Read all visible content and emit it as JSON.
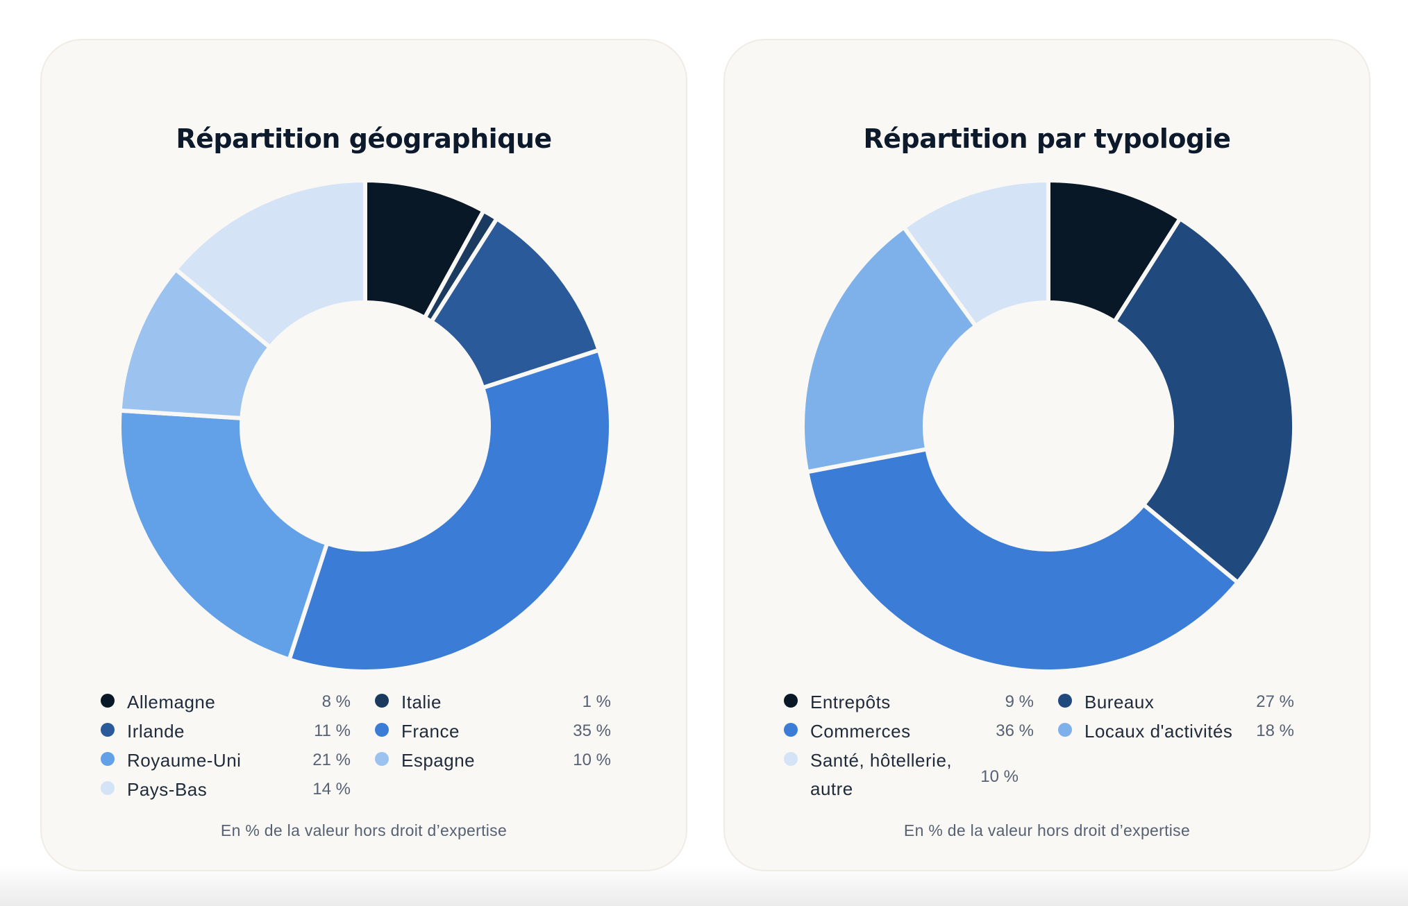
{
  "chart_data": [
    {
      "type": "pie",
      "title": "Répartition géographique",
      "unit": "%",
      "note": "En % de la valeur hors droit d’expertise",
      "series": [
        {
          "name": "Allemagne",
          "value": 8,
          "display": "8 %",
          "color": "#091826"
        },
        {
          "name": "Italie",
          "value": 1,
          "display": "1 %",
          "color": "#1b3a60"
        },
        {
          "name": "Irlande",
          "value": 11,
          "display": "11 %",
          "color": "#2a5a99"
        },
        {
          "name": "France",
          "value": 35,
          "display": "35 %",
          "color": "#3b7dd6"
        },
        {
          "name": "Royaume-Uni",
          "value": 21,
          "display": "21 %",
          "color": "#62a0e7"
        },
        {
          "name": "Espagne",
          "value": 10,
          "display": "10 %",
          "color": "#9cc3f0"
        },
        {
          "name": "Pays-Bas",
          "value": 14,
          "display": "14 %",
          "color": "#d4e4f6"
        }
      ]
    },
    {
      "type": "pie",
      "title": "Répartition par typologie",
      "unit": "%",
      "note": "En % de la valeur hors droit d’expertise",
      "series": [
        {
          "name": "Entrepôts",
          "value": 9,
          "display": "9 %",
          "color": "#091826"
        },
        {
          "name": "Bureaux",
          "value": 27,
          "display": "27 %",
          "color": "#20497d"
        },
        {
          "name": "Commerces",
          "value": 36,
          "display": "36 %",
          "color": "#3b7dd6"
        },
        {
          "name": "Locaux d'activités",
          "value": 18,
          "display": "18 %",
          "color": "#7eb0ea"
        },
        {
          "name": "Santé, hôtellerie, autre",
          "value": 10,
          "display": "10 %",
          "color": "#d4e4f6"
        }
      ]
    }
  ]
}
